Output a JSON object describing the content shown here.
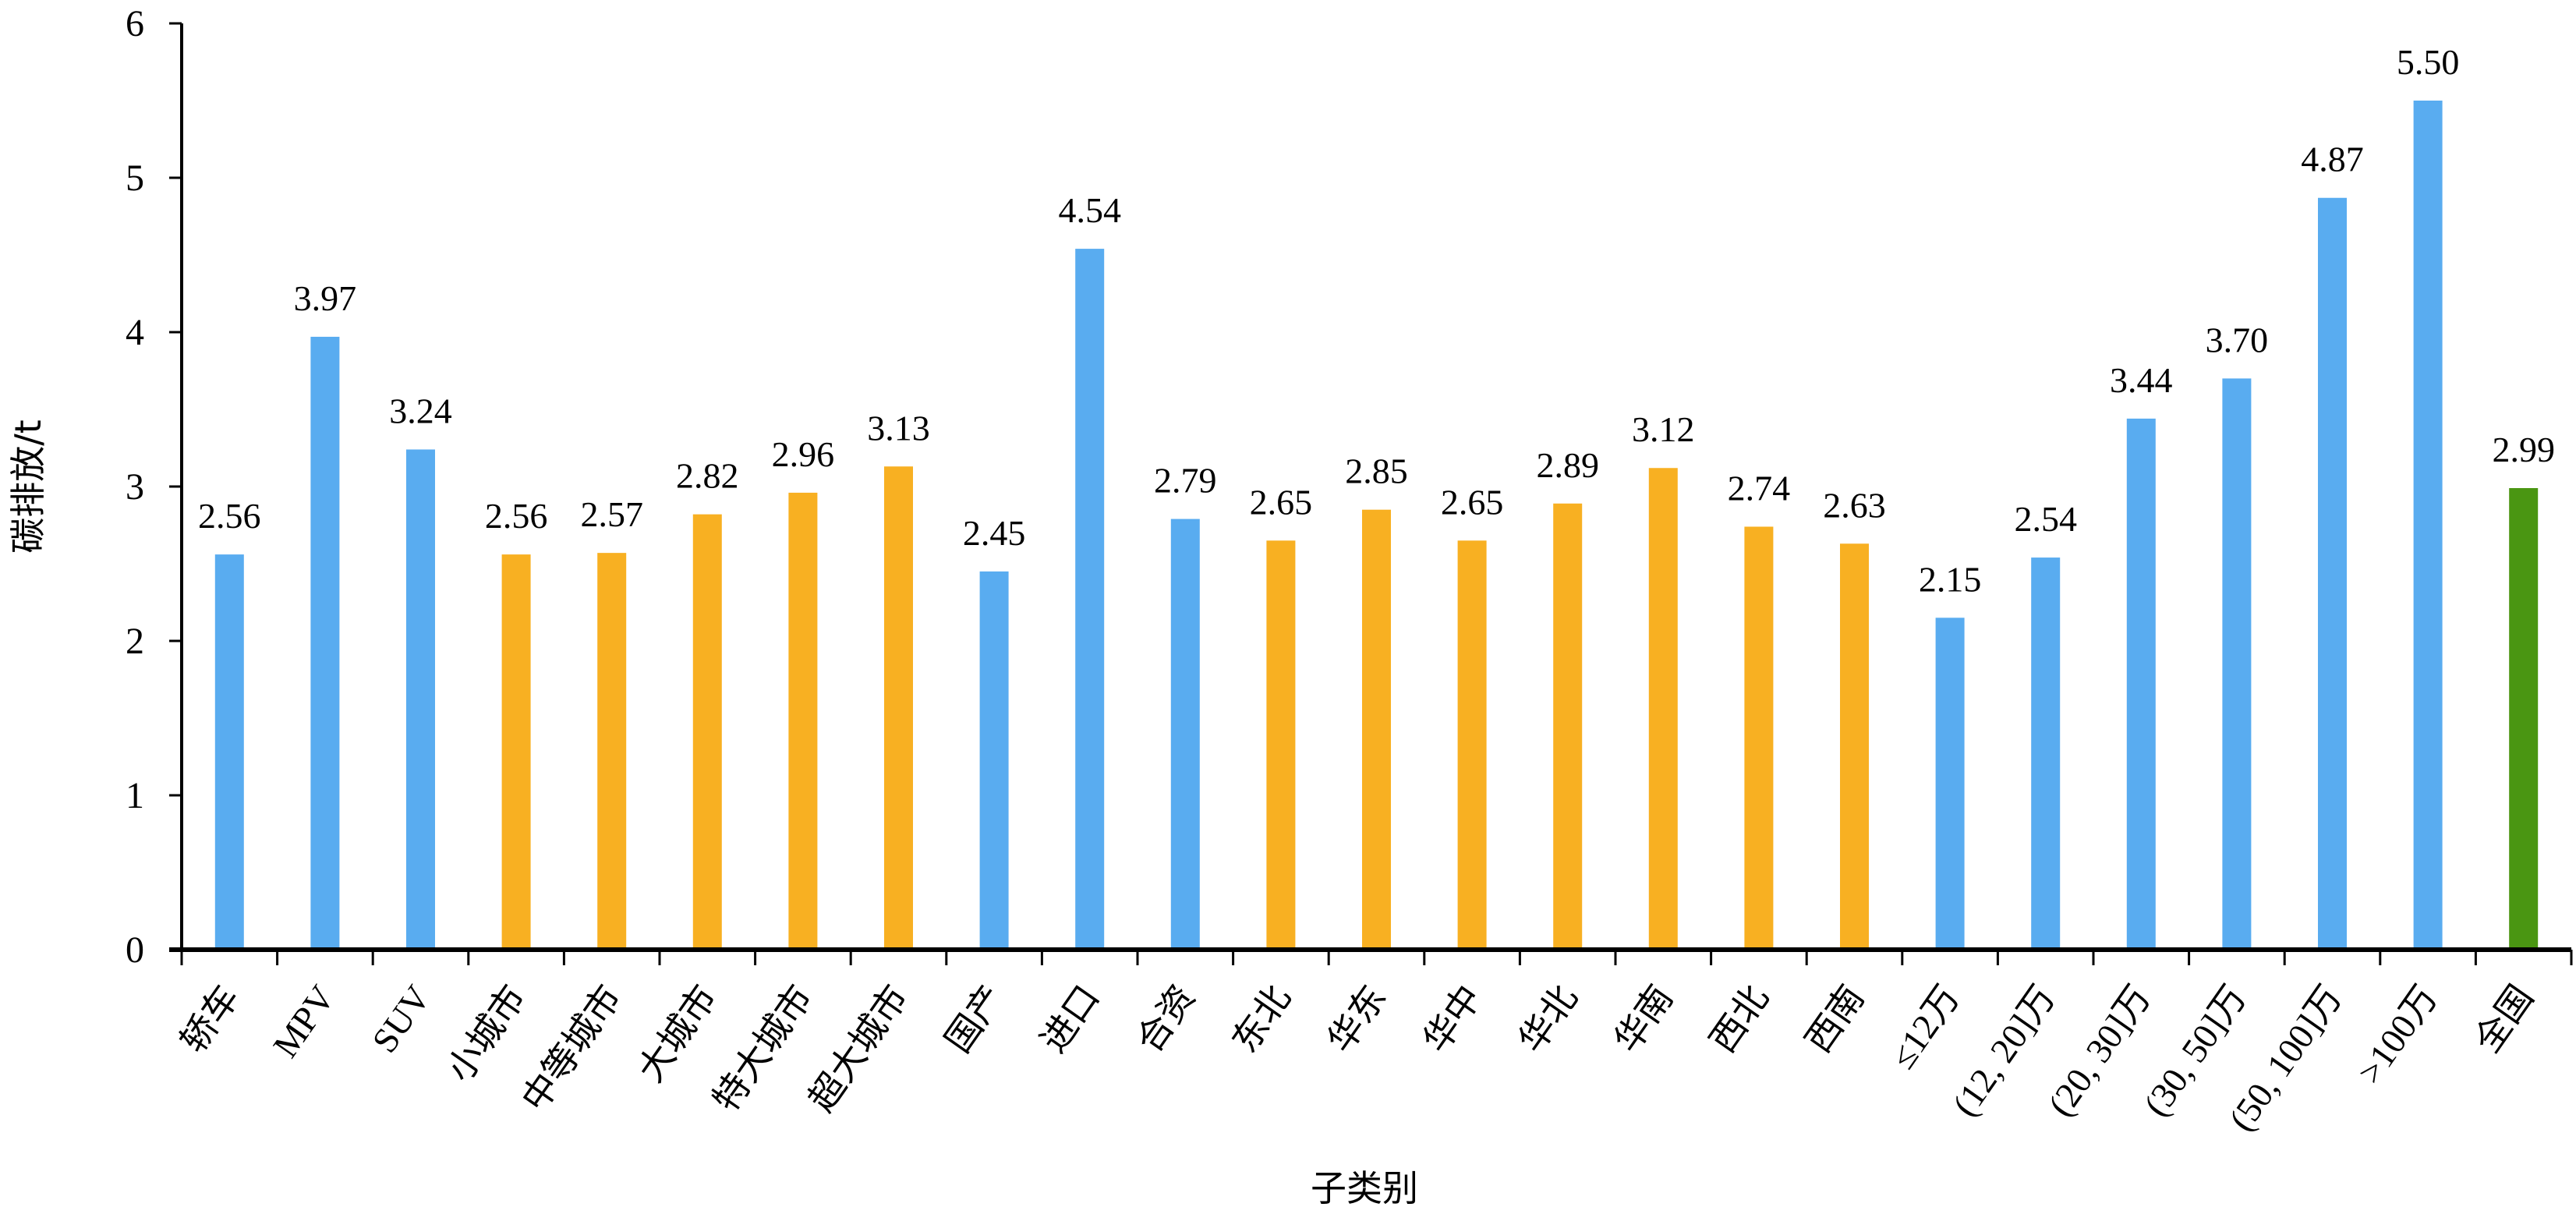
{
  "chart_data": {
    "type": "bar",
    "title": "",
    "xlabel": "子类别",
    "ylabel": "碳排放/t",
    "ylim": [
      0,
      6
    ],
    "yticks": [
      "0",
      "1",
      "2",
      "3",
      "4",
      "5",
      "6"
    ],
    "grid": false,
    "categories": [
      "轿车",
      "MPV",
      "SUV",
      "小城市",
      "中等城市",
      "大城市",
      "特大城市",
      "超大城市",
      "国产",
      "进口",
      "合资",
      "东北",
      "华东",
      "华中",
      "华北",
      "华南",
      "西北",
      "西南",
      "≤12万",
      "(12, 20]万",
      "(20, 30]万",
      "(30, 50]万",
      "(50, 100]万",
      ">100万",
      "全国"
    ],
    "values": [
      2.56,
      3.97,
      3.24,
      2.56,
      2.57,
      2.82,
      2.96,
      3.13,
      2.45,
      4.54,
      2.79,
      2.65,
      2.85,
      2.65,
      2.89,
      3.12,
      2.74,
      2.63,
      2.15,
      2.54,
      3.44,
      3.7,
      4.87,
      5.5,
      2.99
    ],
    "value_labels": [
      "2.56",
      "3.97",
      "3.24",
      "2.56",
      "2.57",
      "2.82",
      "2.96",
      "3.13",
      "2.45",
      "4.54",
      "2.79",
      "2.65",
      "2.85",
      "2.65",
      "2.89",
      "3.12",
      "2.74",
      "2.63",
      "2.15",
      "2.54",
      "3.44",
      "3.70",
      "4.87",
      "5.50",
      "2.99"
    ],
    "groups": [
      "blue",
      "blue",
      "blue",
      "orange",
      "orange",
      "orange",
      "orange",
      "orange",
      "blue",
      "blue",
      "blue",
      "orange",
      "orange",
      "orange",
      "orange",
      "orange",
      "orange",
      "orange",
      "blue",
      "blue",
      "blue",
      "blue",
      "blue",
      "blue",
      "green"
    ],
    "colors": {
      "blue": "#59ACF0",
      "orange": "#F8B022",
      "green": "#4A9612"
    }
  }
}
